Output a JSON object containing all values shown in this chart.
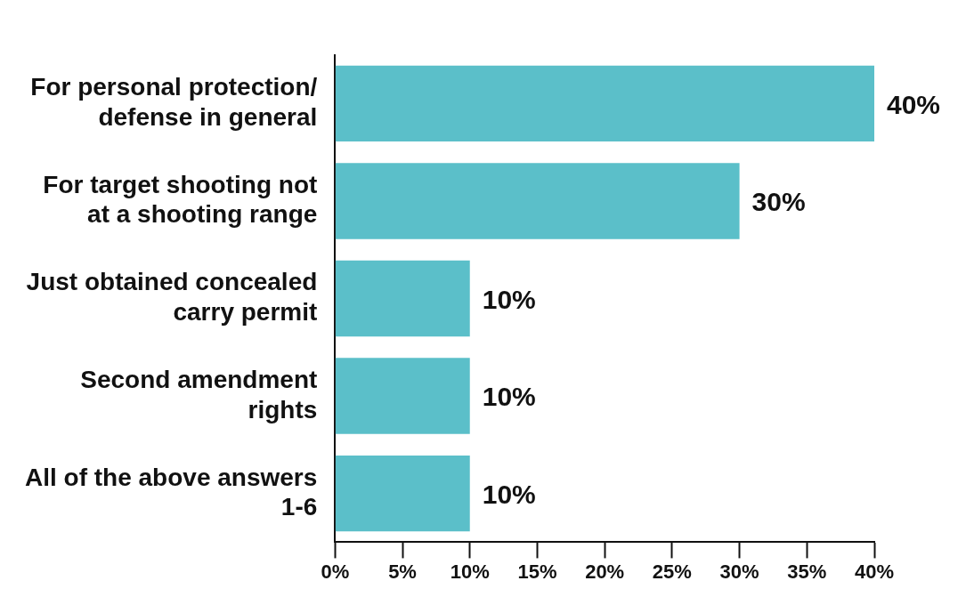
{
  "chart_data": {
    "type": "bar",
    "orientation": "horizontal",
    "categories": [
      "For personal protection/\ndefense in general",
      "For target shooting not\nat a shooting range",
      "Just obtained concealed\ncarry permit",
      "Second amendment\nrights",
      "All of the above answers\n1-6"
    ],
    "values": [
      40,
      30,
      10,
      10,
      10
    ],
    "value_labels": [
      "40%",
      "30%",
      "10%",
      "10%",
      "10%"
    ],
    "color": "#5bbfc9",
    "xlim": [
      0,
      40
    ],
    "xticks": [
      {
        "value": 0,
        "label": "0%"
      },
      {
        "value": 5,
        "label": "5%"
      },
      {
        "value": 10,
        "label": "10%"
      },
      {
        "value": 15,
        "label": "15%"
      },
      {
        "value": 20,
        "label": "20%"
      },
      {
        "value": 25,
        "label": "25%"
      },
      {
        "value": 30,
        "label": "30%"
      },
      {
        "value": 35,
        "label": "35%"
      },
      {
        "value": 40,
        "label": "40%"
      }
    ],
    "grid": false,
    "legend": false
  }
}
